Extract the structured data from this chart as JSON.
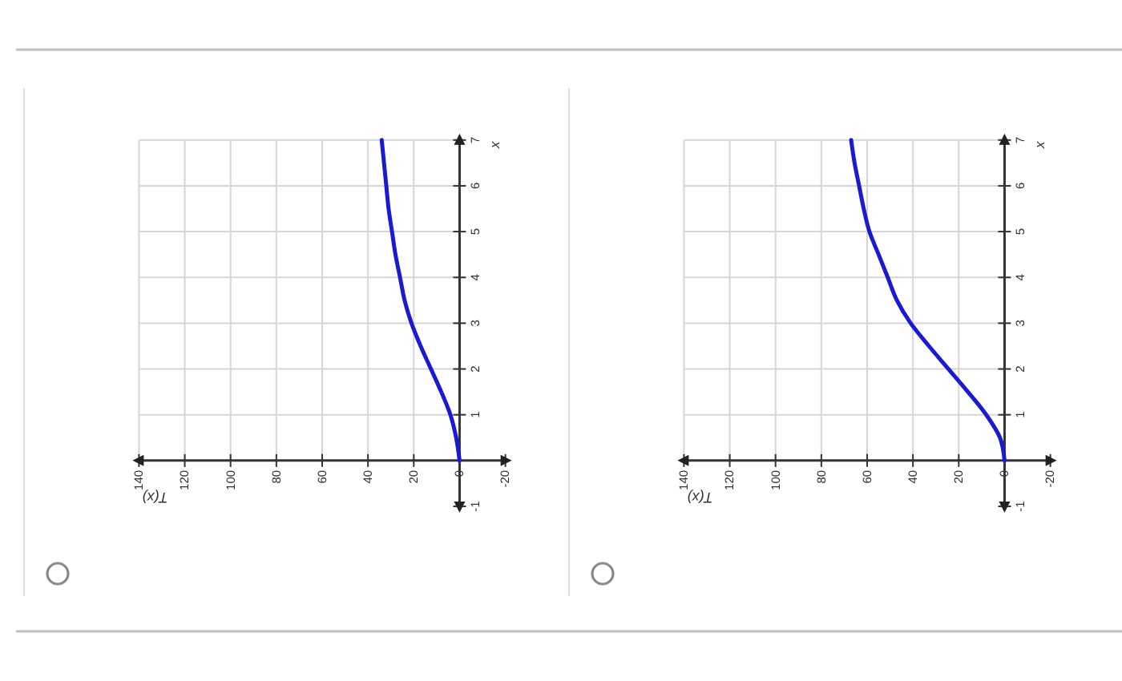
{
  "chart_data": [
    {
      "type": "line",
      "xlabel": "T(x)",
      "ylabel": "x",
      "x": [
        0,
        1.5,
        4,
        8,
        12.5,
        17,
        21,
        24,
        26,
        28,
        29.5,
        31,
        32,
        33,
        34
      ],
      "series": [
        {
          "color": "#1a1ad1",
          "values": [
            0,
            0.5,
            1,
            1.5,
            2,
            2.5,
            3,
            3.5,
            4,
            4.5,
            5,
            5.5,
            6,
            6.5,
            7
          ]
        }
      ],
      "xlim": [
        140,
        -20
      ],
      "ylim": [
        -1,
        7
      ],
      "xticks": [
        140,
        120,
        100,
        80,
        60,
        40,
        20,
        0,
        -20
      ],
      "yticks": [
        -1,
        1,
        2,
        3,
        4,
        5,
        6,
        7
      ],
      "grid": true
    },
    {
      "type": "line",
      "xlabel": "T(x)",
      "ylabel": "x",
      "x": [
        0,
        2,
        8,
        16,
        24.5,
        33,
        41,
        47,
        51,
        55,
        59,
        61.5,
        63.5,
        65.5,
        67
      ],
      "series": [
        {
          "color": "#1a1ad1",
          "values": [
            0,
            0.5,
            1,
            1.5,
            2,
            2.5,
            3,
            3.5,
            4,
            4.5,
            5,
            5.5,
            6,
            6.5,
            7
          ]
        }
      ],
      "xlim": [
        140,
        -20
      ],
      "ylim": [
        -1,
        7
      ],
      "xticks": [
        140,
        120,
        100,
        80,
        60,
        40,
        20,
        0,
        -20
      ],
      "yticks": [
        -1,
        1,
        2,
        3,
        4,
        5,
        6,
        7
      ],
      "grid": true
    }
  ]
}
